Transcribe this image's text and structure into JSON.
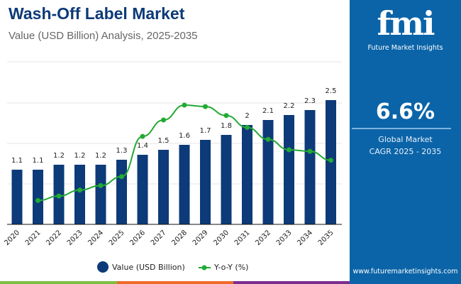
{
  "title": "Wash-Off Label Market",
  "subtitle": "Value (USD Billion) Analysis, 2025-2035",
  "side": {
    "logo_mark": "fmi",
    "logo_text": "Future Market Insights",
    "cagr_value": "6.6%",
    "cagr_line1": "Global Market",
    "cagr_line2": "CAGR 2025 - 2035",
    "url": "www.futuremarketinsights.com"
  },
  "colors": {
    "bar": "#0d3a78",
    "line": "#22aa33",
    "panel": "#0b64a8",
    "stripe": [
      "#7cbf3f",
      "#ee6a2a",
      "#7a2e8e"
    ]
  },
  "chart_data": {
    "type": "bar+line",
    "categories": [
      "2020",
      "2021",
      "2022",
      "2023",
      "2024",
      "2025",
      "2026",
      "2027",
      "2028",
      "2029",
      "2030",
      "2031",
      "2032",
      "2033",
      "2034",
      "2035"
    ],
    "series": [
      {
        "name": "Value (USD Billion)",
        "type": "bar",
        "values": [
          1.1,
          1.1,
          1.2,
          1.2,
          1.2,
          1.3,
          1.4,
          1.5,
          1.6,
          1.7,
          1.8,
          2,
          2.1,
          2.2,
          2.3,
          2.5
        ]
      },
      {
        "name": "Y-o-Y (%)",
        "type": "line",
        "values": [
          null,
          1.6,
          1.9,
          2.3,
          2.6,
          3.2,
          5.9,
          7.0,
          8.0,
          7.9,
          7.3,
          6.5,
          5.7,
          5.0,
          4.9,
          4.3
        ]
      }
    ],
    "data_labels": [
      "1.1",
      "1.1",
      "1.2",
      "1.2",
      "1.2",
      "1.3",
      "1.4",
      "1.5",
      "1.6",
      "1.7",
      "1.8",
      "2",
      "2.1",
      "2.2",
      "2.3",
      "2.5"
    ],
    "grid": true,
    "legend": "bottom"
  }
}
